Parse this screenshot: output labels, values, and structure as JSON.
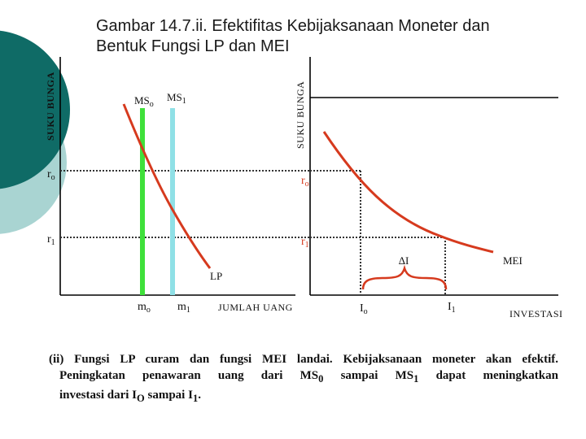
{
  "title": {
    "line1": "Gambar 14.7.ii. Efektifitas Kebijaksanaan Moneter dan",
    "line2": "Bentuk Fungsi LP dan MEI"
  },
  "left_chart": {
    "y_axis_label": "SUKU BUNGA",
    "x_axis_label": "JUMLAH UANG",
    "r0": "r",
    "r0_sub": "o",
    "r1": "r",
    "r1_sub": "1",
    "ms0": "MS",
    "ms0_sub": "o",
    "ms1": "MS",
    "ms1_sub": "1",
    "lp_label": "LP",
    "m0": "m",
    "m0_sub": "o",
    "m1": "m",
    "m1_sub": "1"
  },
  "right_chart": {
    "y_axis_label": "SUKU BUNGA",
    "x_axis_label": "INVESTASI",
    "r0": "r",
    "r0_sub": "o",
    "r1": "r",
    "r1_sub": "1",
    "mei_label": "MEI",
    "delta_label": "∆I",
    "i0": "I",
    "i0_sub": "o",
    "i1": "I",
    "i1_sub": "1"
  },
  "caption": {
    "line1": "(ii) Fungsi LP curam dan fungsi MEI landai. Kebijaksanaan moneter akan efektif.",
    "line2a": "Peningkatan penawaran uang dari MS",
    "line2_sub1": "0",
    "line2b": " sampai MS",
    "line2_sub2": "1",
    "line2c": " dapat meningkatkan",
    "line3a": "investasi dari I",
    "line3_sub1": "O",
    "line3b": "  sampai I",
    "line3_sub2": "1",
    "line3c": "."
  },
  "colors": {
    "decor_dark": "#0f6b66",
    "decor_light": "#a9d4d2",
    "ms0_line": "#3fe03a",
    "ms1_line": "#8fe0e6",
    "curve": "#d63a1e",
    "axis": "#000000"
  },
  "icons": [
    "decorative-circle-icon",
    "curly-brace-icon"
  ]
}
